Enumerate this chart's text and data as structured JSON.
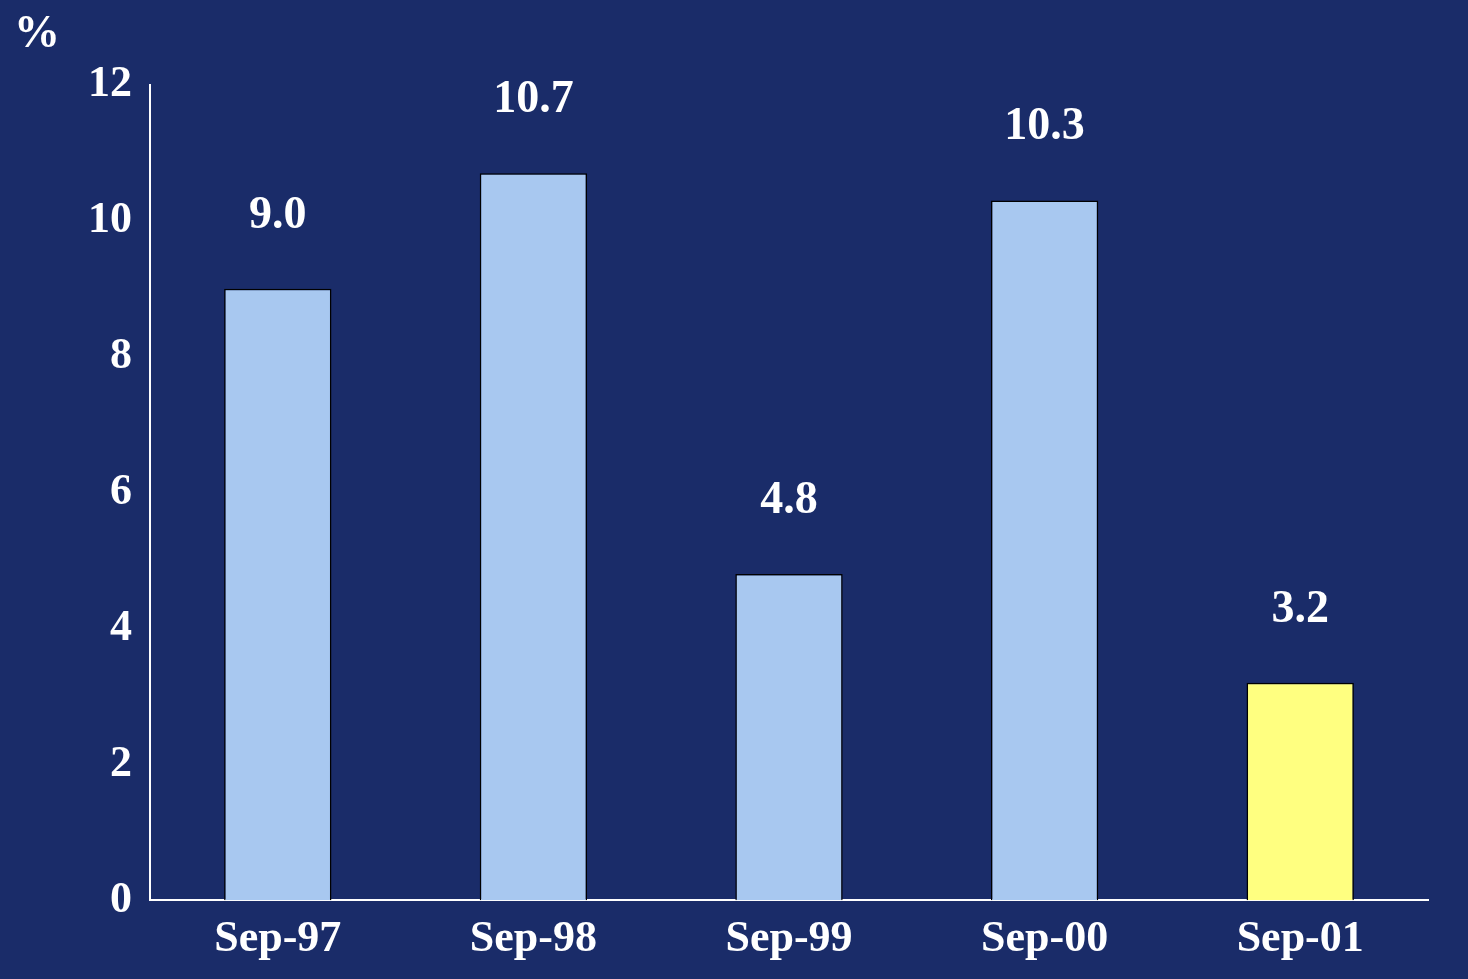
{
  "chart_data": {
    "type": "bar",
    "ylabel": "%",
    "categories": [
      "Sep-97",
      "Sep-98",
      "Sep-99",
      "Sep-00",
      "Sep-01"
    ],
    "values": [
      9.0,
      10.7,
      4.8,
      10.3,
      3.2
    ],
    "colors": [
      "#a8c8f0",
      "#a8c8f0",
      "#a8c8f0",
      "#a8c8f0",
      "#ffff80"
    ],
    "value_labels": [
      "9.0",
      "10.7",
      "4.8",
      "10.3",
      "3.2"
    ],
    "ylim": [
      0,
      12
    ],
    "yticks": [
      0,
      2,
      4,
      6,
      8,
      10,
      12
    ],
    "grid": false,
    "legend": false
  }
}
